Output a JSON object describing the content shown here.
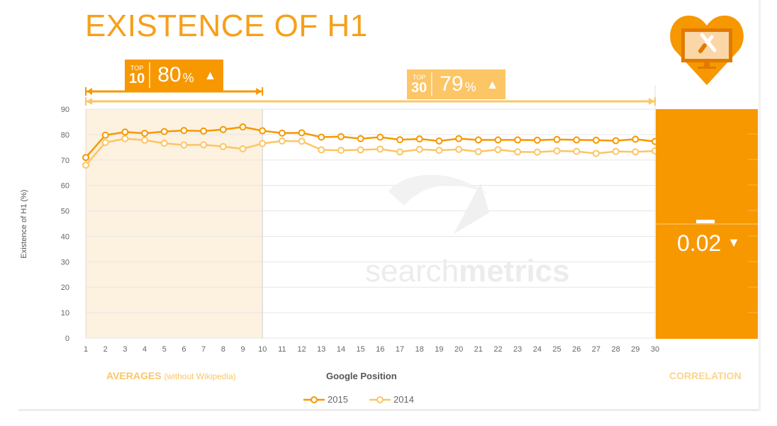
{
  "title": "EXISTENCE OF H1",
  "top10": {
    "label_small": "TOP",
    "label_big": "10",
    "value": "80",
    "unit": "%",
    "arrow": "▲"
  },
  "top30": {
    "label_small": "TOP",
    "label_big": "30",
    "value": "79",
    "unit": "%",
    "arrow": "▲"
  },
  "correlation": {
    "value": "0.02",
    "arrow": "▼",
    "label": "CORRELATION"
  },
  "averages_label": "AVERAGES",
  "averages_sub": "(without Wikipedia)",
  "watermark": {
    "light": "search",
    "bold": "metrics"
  },
  "colors": {
    "orange": "#f79800",
    "light_orange": "#fcc566",
    "title": "#f6a01a",
    "highlight": "#fdf1df"
  },
  "icon": "heart-monitor-tools-icon",
  "chart_data": {
    "type": "line",
    "title": "EXISTENCE OF H1",
    "xlabel": "Google Position",
    "ylabel": "Existence of H1 (%)",
    "x": [
      1,
      2,
      3,
      4,
      5,
      6,
      7,
      8,
      9,
      10,
      11,
      12,
      13,
      14,
      15,
      16,
      17,
      18,
      19,
      20,
      21,
      22,
      23,
      24,
      25,
      26,
      27,
      28,
      29,
      30
    ],
    "ylim": [
      0,
      90
    ],
    "yticks": [
      0,
      10,
      20,
      30,
      40,
      50,
      60,
      70,
      80,
      90
    ],
    "grid": true,
    "legend": "bottom-center",
    "series": [
      {
        "name": "2015",
        "color": "#f79800",
        "values": [
          71,
          79.8,
          81,
          80.5,
          81.2,
          81.6,
          81.4,
          82,
          83,
          81.5,
          80.6,
          80.7,
          79,
          79.2,
          78.4,
          79,
          78,
          78.3,
          77.5,
          78.4,
          77.9,
          77.9,
          77.9,
          77.8,
          78.1,
          77.9,
          77.8,
          77.6,
          78.2,
          77.3
        ]
      },
      {
        "name": "2014",
        "color": "#fcc566",
        "values": [
          68,
          76.9,
          78.4,
          77.8,
          76.6,
          75.9,
          76,
          75.3,
          74.4,
          76.5,
          77.5,
          77.4,
          74,
          73.8,
          74,
          74.3,
          73.2,
          74.2,
          73.8,
          74.2,
          73.3,
          74.1,
          73.2,
          73.1,
          73.6,
          73.4,
          72.6,
          73.4,
          73.2,
          73.6
        ]
      }
    ]
  }
}
